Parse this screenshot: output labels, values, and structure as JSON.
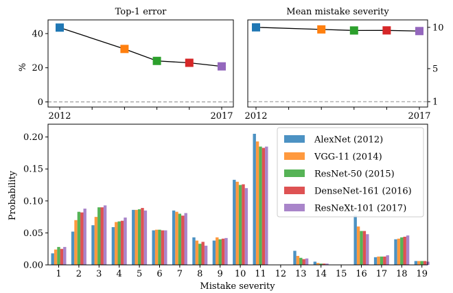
{
  "chart_data": [
    {
      "type": "line",
      "title": "Top-1 error",
      "ylabel": "%",
      "x": [
        2012,
        2014,
        2015,
        2016,
        2017
      ],
      "y": [
        43.5,
        31.0,
        24.0,
        22.9,
        20.8
      ],
      "point_colors": [
        "#1f77b4",
        "#ff7f0e",
        "#2ca02c",
        "#d62728",
        "#9467bd"
      ],
      "xlim": [
        2012,
        2017
      ],
      "xticks": [
        2012,
        2013,
        2014,
        2015,
        2016,
        2017
      ],
      "xtick_labels": [
        "2012",
        "",
        "",
        "",
        "",
        "2017"
      ],
      "ylim": [
        -3,
        48
      ],
      "yticks": [
        0,
        20,
        40
      ],
      "ytick_labels": [
        "0",
        "20",
        "40"
      ],
      "reference_line": 0
    },
    {
      "type": "line",
      "title": "Mean mistake severity",
      "ylabel": "",
      "x": [
        2012,
        2014,
        2015,
        2016,
        2017
      ],
      "y": [
        10.0,
        9.75,
        9.62,
        9.63,
        9.55
      ],
      "point_colors": [
        "#1f77b4",
        "#ff7f0e",
        "#2ca02c",
        "#d62728",
        "#9467bd"
      ],
      "xlim": [
        2012,
        2017
      ],
      "xticks": [
        2012,
        2013,
        2014,
        2015,
        2016,
        2017
      ],
      "xtick_labels": [
        "2012",
        "",
        "",
        "",
        "",
        "2017"
      ],
      "ylim": [
        0.35,
        10.9
      ],
      "yticks": [
        1,
        5,
        10
      ],
      "ytick_labels": [
        "1",
        "5",
        "10"
      ],
      "reference_line": 1
    },
    {
      "type": "bar",
      "title": "",
      "xlabel": "Mistake severity",
      "ylabel": "Probability",
      "categories": [
        "1",
        "2",
        "3",
        "4",
        "5",
        "6",
        "7",
        "8",
        "9",
        "10",
        "11",
        "12",
        "13",
        "14",
        "15",
        "16",
        "17",
        "18",
        "19"
      ],
      "ylim": [
        0,
        0.22
      ],
      "yticks": [
        0.0,
        0.05,
        0.1,
        0.15,
        0.2
      ],
      "ytick_labels": [
        "0.00",
        "0.05",
        "0.10",
        "0.15",
        "0.20"
      ],
      "legend_position": "top-right",
      "series": [
        {
          "name": "AlexNet (2012)",
          "color": "#1f77b4",
          "values": [
            0.018,
            0.052,
            0.062,
            0.059,
            0.086,
            0.054,
            0.085,
            0.043,
            0.038,
            0.133,
            0.205,
            0.0,
            0.022,
            0.005,
            0.0,
            0.078,
            0.012,
            0.04,
            0.006
          ]
        },
        {
          "name": "VGG-11 (2014)",
          "color": "#ff7f0e",
          "values": [
            0.024,
            0.07,
            0.075,
            0.067,
            0.086,
            0.055,
            0.083,
            0.038,
            0.043,
            0.13,
            0.193,
            0.0,
            0.014,
            0.003,
            0.0,
            0.06,
            0.013,
            0.041,
            0.006
          ]
        },
        {
          "name": "ResNet-50 (2015)",
          "color": "#2ca02c",
          "values": [
            0.028,
            0.083,
            0.09,
            0.068,
            0.087,
            0.055,
            0.08,
            0.033,
            0.04,
            0.125,
            0.185,
            0.0,
            0.011,
            0.002,
            0.0,
            0.053,
            0.013,
            0.043,
            0.006
          ]
        },
        {
          "name": "DenseNet-161 (2016)",
          "color": "#d62728",
          "values": [
            0.025,
            0.082,
            0.09,
            0.069,
            0.089,
            0.054,
            0.077,
            0.036,
            0.041,
            0.126,
            0.183,
            0.0,
            0.009,
            0.002,
            0.0,
            0.053,
            0.013,
            0.044,
            0.006
          ]
        },
        {
          "name": "ResNeXt-101 (2017)",
          "color": "#9467bd",
          "values": [
            0.028,
            0.088,
            0.093,
            0.074,
            0.085,
            0.054,
            0.081,
            0.03,
            0.042,
            0.12,
            0.185,
            0.0,
            0.01,
            0.002,
            0.0,
            0.048,
            0.015,
            0.046,
            0.005
          ]
        }
      ]
    }
  ]
}
